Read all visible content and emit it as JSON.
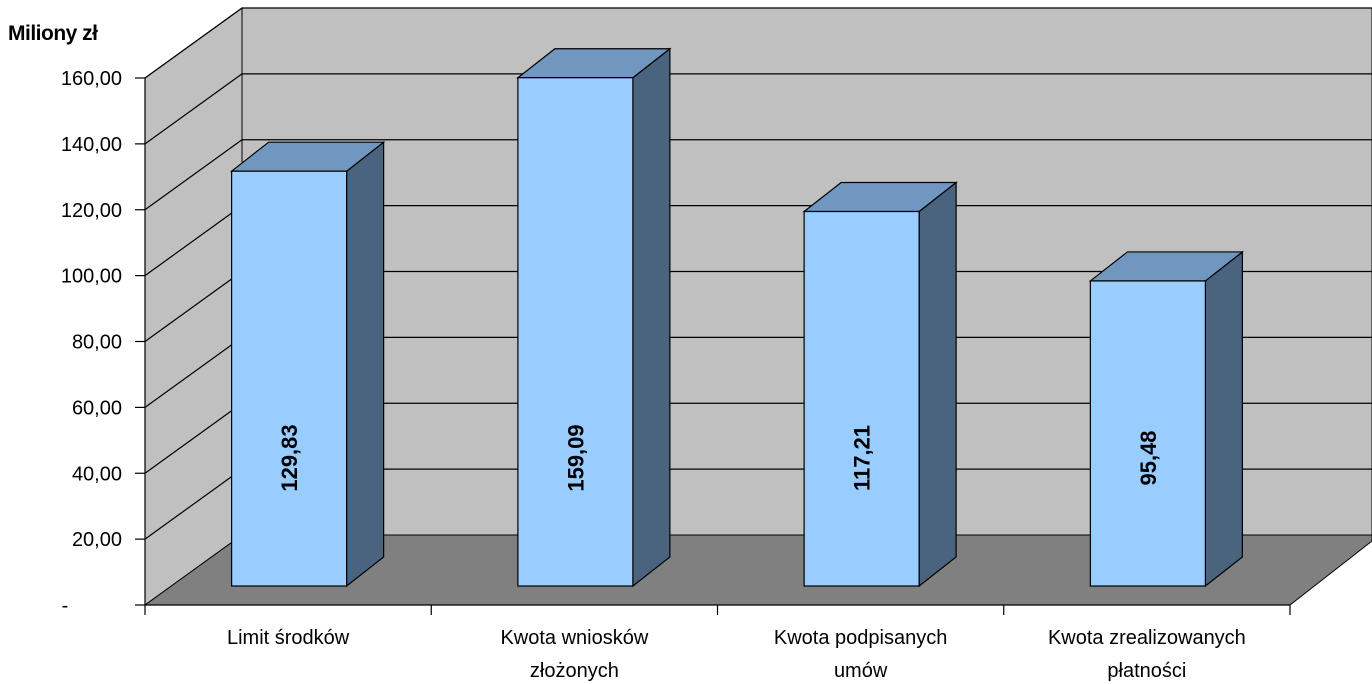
{
  "chart_data": {
    "type": "bar",
    "style": "3d-column",
    "unit_label": "Miliony zł",
    "categories": [
      [
        "Limit środków"
      ],
      [
        "Kwota wniosków",
        "złożonych"
      ],
      [
        "Kwota podpisanych",
        "umów"
      ],
      [
        "Kwota zrealizowanych",
        "płatności"
      ]
    ],
    "values": [
      129.83,
      159.09,
      117.21,
      95.48
    ],
    "data_labels": [
      "129,83",
      "159,09",
      "117,21",
      "95,48"
    ],
    "yticks": [
      "-",
      "20,00",
      "40,00",
      "60,00",
      "80,00",
      "100,00",
      "120,00",
      "140,00",
      "160,00"
    ],
    "ylim": [
      0,
      160
    ],
    "grid": true,
    "legend": "none",
    "colors": {
      "bar_front": "#99ccff",
      "bar_top": "#6f97bf",
      "bar_side": "#4a6480",
      "back_wall": "#c0c0c0",
      "side_wall": "#c0c0c0",
      "floor": "#808080"
    }
  }
}
